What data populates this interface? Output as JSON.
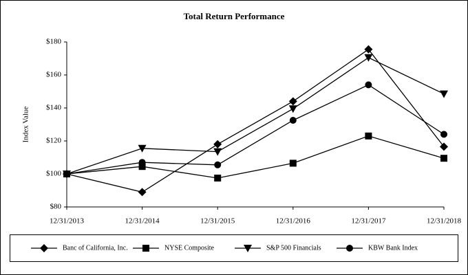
{
  "chart_data": {
    "type": "line",
    "title": "Total Return Performance",
    "y_label": "Index Value",
    "categories": [
      "12/31/2013",
      "12/31/2014",
      "12/31/2015",
      "12/31/2016",
      "12/31/2017",
      "12/31/2018"
    ],
    "series": [
      {
        "name": "Banc of California, Inc.",
        "color": "#000000",
        "marker": "diamond",
        "values": [
          100,
          89,
          118,
          144,
          175.5,
          116.5
        ]
      },
      {
        "name": "NYSE Composite",
        "color": "#000000",
        "marker": "square",
        "values": [
          100,
          104.5,
          97.5,
          106.5,
          123,
          109.5
        ]
      },
      {
        "name": "S&P 500 Financials",
        "color": "#000000",
        "marker": "triangle-down",
        "values": [
          100,
          115.5,
          113.5,
          139.5,
          170.5,
          148.5
        ]
      },
      {
        "name": "KBW Bank Index",
        "color": "#000000",
        "marker": "circle",
        "values": [
          100,
          107,
          105.5,
          132.5,
          154,
          124
        ]
      }
    ],
    "ylim": [
      80,
      180
    ],
    "yticks": [
      {
        "value": 80,
        "label": "$80"
      },
      {
        "value": 100,
        "label": "$100"
      },
      {
        "value": 120,
        "label": "$120"
      },
      {
        "value": 140,
        "label": "$140"
      },
      {
        "value": 160,
        "label": "$160"
      },
      {
        "value": 180,
        "label": "$180"
      }
    ],
    "grid": false
  }
}
